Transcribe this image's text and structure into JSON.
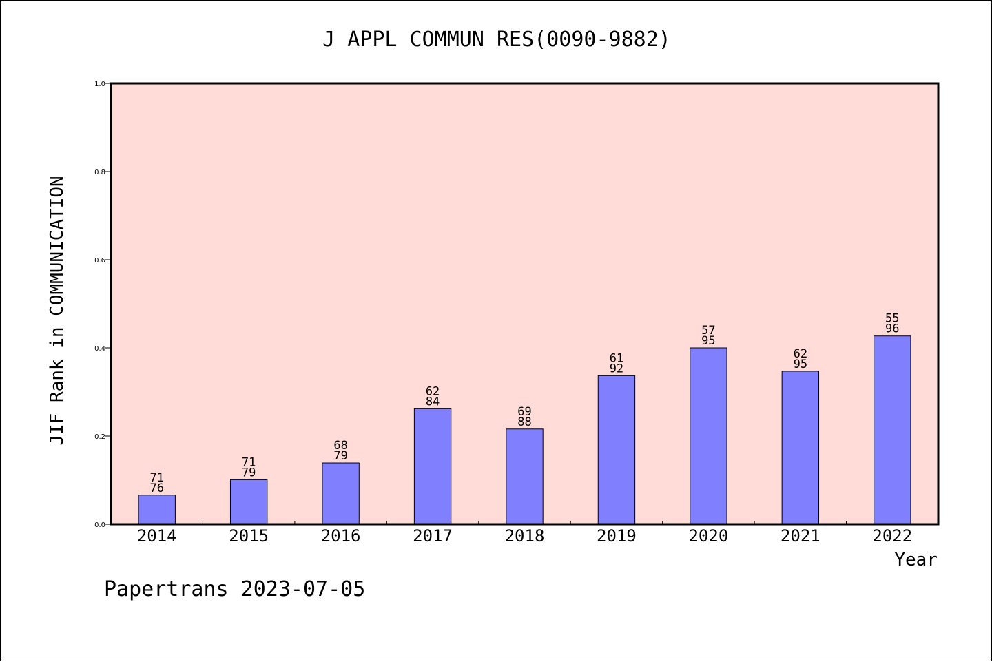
{
  "chart_data": {
    "type": "bar",
    "title": "J APPL COMMUN RES(0090-9882)",
    "xlabel": "Year",
    "ylabel": "JIF Rank in COMMUNICATION",
    "ylim": [
      0,
      1.0
    ],
    "yticks": [
      "0.0",
      "0.2",
      "0.4",
      "0.6",
      "0.8",
      "1.0"
    ],
    "categories": [
      "2014",
      "2015",
      "2016",
      "2017",
      "2018",
      "2019",
      "2020",
      "2021",
      "2022"
    ],
    "values": [
      0.066,
      0.101,
      0.139,
      0.262,
      0.216,
      0.337,
      0.4,
      0.347,
      0.427
    ],
    "rank": [
      "71",
      "71",
      "68",
      "62",
      "69",
      "61",
      "57",
      "62",
      "55"
    ],
    "total": [
      "76",
      "79",
      "79",
      "84",
      "88",
      "92",
      "95",
      "95",
      "96"
    ],
    "grid": false,
    "colors": {
      "plot_background": "#ffdcd8",
      "bar_fill": "#8080ff",
      "axis": "#000000"
    }
  },
  "footer": {
    "credit": "Papertrans 2023-07-05"
  }
}
